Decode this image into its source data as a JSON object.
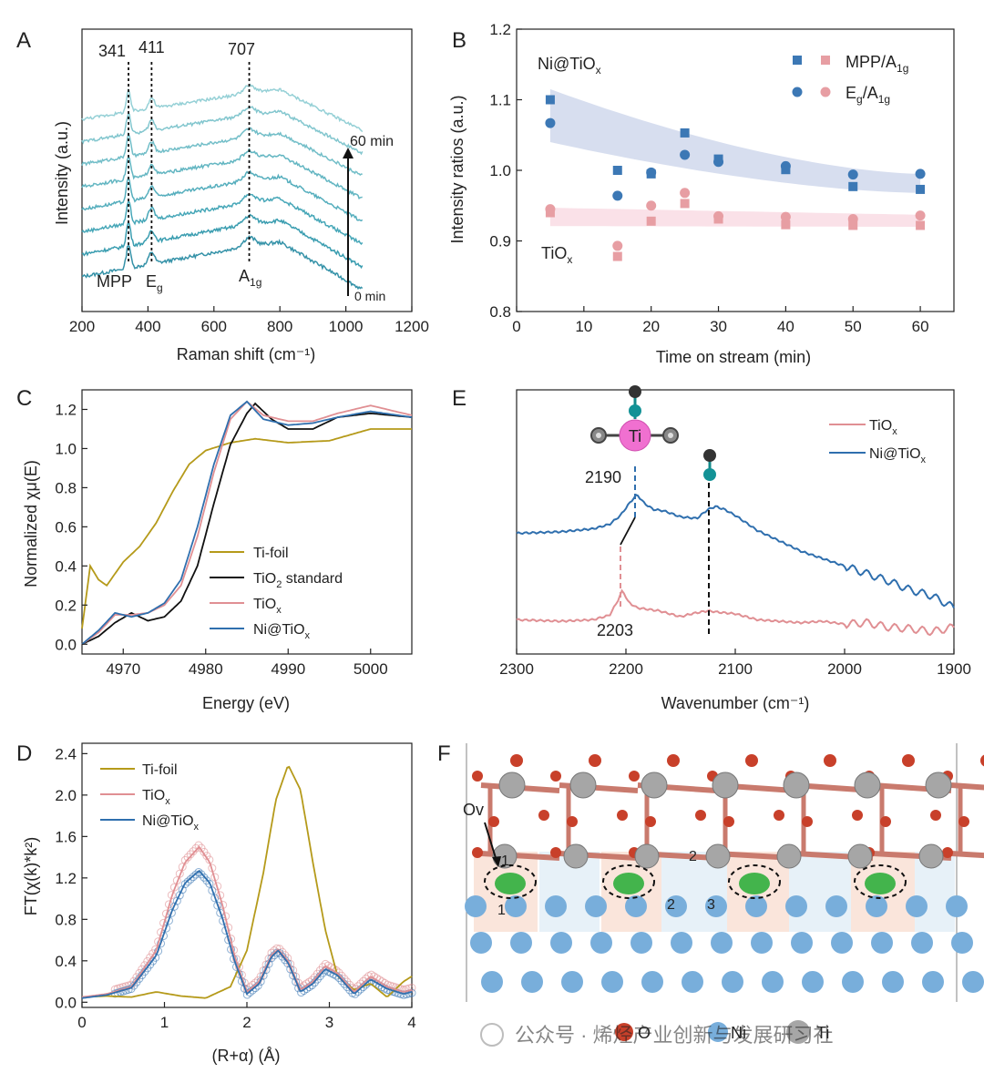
{
  "colors": {
    "ti_foil": "#b59a1a",
    "tio2_std": "#111111",
    "tiox": "#e08f93",
    "ni_tiox": "#2f6fae",
    "raman": "#3aa7b8",
    "blue_marker": "#3c78b5",
    "pink_marker": "#e79ea3",
    "o_atom": "#c8402a",
    "ni_atom": "#78aedb",
    "ti_atom": "#a6a6a6",
    "charge": "#2fae3c"
  },
  "chart_data": [
    {
      "panel": "A",
      "type": "line",
      "xlabel": "Raman shift (cm⁻¹)",
      "ylabel": "Intensity (a.u.)",
      "xlim": [
        200,
        1200
      ],
      "xticks": [
        "200",
        "400",
        "600",
        "800",
        "1000",
        "1200"
      ],
      "peak_labels": [
        "341",
        "411",
        "707"
      ],
      "peak_positions": [
        341,
        411,
        707
      ],
      "mode_labels": {
        "mpp": "MPP",
        "eg": "E",
        "eg_sub": "g",
        "a1g": "A",
        "a1g_sub": "1g"
      },
      "time_labels": {
        "top": "60 min",
        "bottom": "0 min"
      },
      "n_series": 8
    },
    {
      "panel": "B",
      "type": "scatter",
      "xlabel": "Time on stream (min)",
      "ylabel": "Intensity ratios (a.u.)",
      "xlim": [
        0,
        65
      ],
      "ylim": [
        0.8,
        1.2
      ],
      "xticks": [
        "0",
        "10",
        "20",
        "30",
        "40",
        "50",
        "60"
      ],
      "yticks": [
        "0.8",
        "0.9",
        "1.0",
        "1.1",
        "1.2"
      ],
      "annotations": {
        "ni_label": "Ni@TiO",
        "ni_sub": "x",
        "ti_label": "TiO",
        "ti_sub": "x"
      },
      "legend": {
        "mpp": "MPP/A",
        "mpp_sub": "1g",
        "eg": "E",
        "eg_sub": "g",
        "eg_tail": "/A",
        "eg_tail_sub": "1g"
      },
      "x": [
        5,
        15,
        20,
        25,
        30,
        40,
        50,
        60
      ],
      "series": [
        {
          "name": "Ni@TiOx MPP/A1g",
          "marker": "square",
          "color": "blue",
          "values": [
            1.1,
            1.0,
            0.995,
            1.053,
            1.016,
            1.001,
            0.977,
            0.973
          ]
        },
        {
          "name": "Ni@TiOx Eg/A1g",
          "marker": "circle",
          "color": "blue",
          "values": [
            1.067,
            0.964,
            0.997,
            1.022,
            1.012,
            1.006,
            0.994,
            0.995
          ]
        },
        {
          "name": "TiOx MPP/A1g",
          "marker": "square",
          "color": "pink",
          "values": [
            0.94,
            0.878,
            0.928,
            0.953,
            0.931,
            0.923,
            0.922,
            0.922
          ]
        },
        {
          "name": "TiOx Eg/A1g",
          "marker": "circle",
          "color": "pink",
          "values": [
            0.945,
            0.893,
            0.95,
            0.968,
            0.935,
            0.934,
            0.931,
            0.936
          ]
        }
      ],
      "bands": [
        {
          "name": "Ni@TiOx",
          "x": [
            5,
            60
          ],
          "upper": [
            1.115,
            0.995
          ],
          "lower": [
            1.04,
            0.968
          ]
        },
        {
          "name": "TiOx",
          "x": [
            5,
            60
          ],
          "upper": [
            0.947,
            0.937
          ],
          "lower": [
            0.921,
            0.92
          ]
        }
      ]
    },
    {
      "panel": "C",
      "type": "line",
      "xlabel": "Energy (eV)",
      "ylabel": "Normalized χμ(E)",
      "xlim": [
        4965,
        5005
      ],
      "ylim": [
        -0.05,
        1.3
      ],
      "xticks": [
        "4970",
        "4980",
        "4990",
        "5000"
      ],
      "yticks": [
        "0.0",
        "0.2",
        "0.4",
        "0.6",
        "0.8",
        "1.0",
        "1.2"
      ],
      "legend": [
        "Ti-foil",
        "TiO",
        "standard",
        "TiO",
        "Ni@TiO"
      ],
      "legend_sub": {
        "tio2": "2",
        "x": "x"
      },
      "series": [
        {
          "name": "Ti-foil",
          "x": [
            4965,
            4966,
            4967,
            4968,
            4969,
            4970,
            4972,
            4974,
            4976,
            4978,
            4980,
            4983,
            4986,
            4990,
            4995,
            5000,
            5005
          ],
          "values": [
            0.08,
            0.4,
            0.33,
            0.3,
            0.36,
            0.42,
            0.5,
            0.62,
            0.78,
            0.92,
            0.99,
            1.03,
            1.05,
            1.03,
            1.04,
            1.1,
            1.1
          ]
        },
        {
          "name": "TiO2 standard",
          "x": [
            4965,
            4967,
            4969,
            4971,
            4973,
            4975,
            4977,
            4979,
            4981,
            4983,
            4985,
            4986,
            4988,
            4990,
            4993,
            4996,
            5000,
            5005
          ],
          "values": [
            0.0,
            0.04,
            0.11,
            0.16,
            0.12,
            0.14,
            0.22,
            0.4,
            0.72,
            1.02,
            1.18,
            1.23,
            1.15,
            1.1,
            1.1,
            1.16,
            1.18,
            1.16
          ]
        },
        {
          "name": "TiOx",
          "x": [
            4965,
            4967,
            4969,
            4971,
            4973,
            4975,
            4977,
            4979,
            4981,
            4983,
            4985,
            4987,
            4990,
            4993,
            4996,
            5000,
            5005
          ],
          "values": [
            0.0,
            0.06,
            0.15,
            0.15,
            0.16,
            0.2,
            0.3,
            0.55,
            0.88,
            1.15,
            1.24,
            1.17,
            1.14,
            1.14,
            1.18,
            1.22,
            1.17
          ]
        },
        {
          "name": "Ni@TiOx",
          "x": [
            4965,
            4967,
            4969,
            4971,
            4973,
            4975,
            4977,
            4979,
            4981,
            4983,
            4985,
            4987,
            4990,
            4993,
            4996,
            5000,
            5005
          ],
          "values": [
            0.0,
            0.07,
            0.16,
            0.14,
            0.16,
            0.21,
            0.33,
            0.6,
            0.92,
            1.17,
            1.24,
            1.15,
            1.12,
            1.13,
            1.16,
            1.19,
            1.16
          ]
        }
      ]
    },
    {
      "panel": "E",
      "type": "line",
      "xlabel": "Wavenumber (cm⁻¹)",
      "xlim": [
        2300,
        1900
      ],
      "xticks": [
        "2300",
        "2200",
        "2100",
        "2000",
        "1900"
      ],
      "peak_labels": [
        "2190",
        "2203"
      ],
      "legend": [
        "TiO",
        "Ni@TiO"
      ],
      "legend_sub": "x",
      "molecule_label": "Ti",
      "series": [
        {
          "name": "Ni@TiOx",
          "x": [
            2300,
            2260,
            2230,
            2215,
            2205,
            2197,
            2190,
            2183,
            2175,
            2165,
            2150,
            2135,
            2125,
            2118,
            2110,
            2100,
            2080,
            2060,
            2040,
            2020,
            2000,
            1980,
            1960,
            1940,
            1920,
            1900
          ],
          "values": [
            0.6,
            0.61,
            0.63,
            0.66,
            0.72,
            0.8,
            0.86,
            0.8,
            0.76,
            0.75,
            0.71,
            0.7,
            0.76,
            0.78,
            0.76,
            0.72,
            0.62,
            0.55,
            0.48,
            0.43,
            0.38,
            0.33,
            0.28,
            0.22,
            0.18,
            0.1
          ]
        },
        {
          "name": "TiOx",
          "x": [
            2300,
            2260,
            2230,
            2215,
            2208,
            2203,
            2198,
            2190,
            2180,
            2170,
            2160,
            2150,
            2140,
            2125,
            2115,
            2100,
            2080,
            2060,
            2040,
            2020,
            2000,
            1980,
            1960,
            1940,
            1920,
            1900
          ],
          "values": [
            0.02,
            0.01,
            0.02,
            0.05,
            0.14,
            0.22,
            0.14,
            0.1,
            0.09,
            0.08,
            0.06,
            0.04,
            0.06,
            0.08,
            0.07,
            0.06,
            0.02,
            0.01,
            0.0,
            0.01,
            -0.01,
            0.0,
            -0.03,
            -0.04,
            -0.06,
            -0.03
          ]
        }
      ]
    },
    {
      "panel": "D",
      "type": "line",
      "xlabel": "(R+α) (Å)",
      "ylabel": "FT(χ(k)*k²)",
      "xlim": [
        0,
        4
      ],
      "ylim": [
        -0.05,
        2.5
      ],
      "xticks": [
        "0",
        "1",
        "2",
        "3",
        "4"
      ],
      "yticks": [
        "0.0",
        "0.4",
        "0.8",
        "1.2",
        "1.6",
        "2.0",
        "2.4"
      ],
      "legend": [
        "Ti-foil",
        "TiO",
        "Ni@TiO"
      ],
      "legend_sub": "x",
      "series": [
        {
          "name": "Ti-foil",
          "x": [
            0,
            0.3,
            0.6,
            0.9,
            1.2,
            1.5,
            1.8,
            2.0,
            2.2,
            2.35,
            2.5,
            2.65,
            2.8,
            2.95,
            3.1,
            3.3,
            3.5,
            3.7,
            3.9,
            4.0
          ],
          "values": [
            0.05,
            0.06,
            0.05,
            0.1,
            0.06,
            0.04,
            0.15,
            0.5,
            1.25,
            1.95,
            2.29,
            2.05,
            1.35,
            0.7,
            0.25,
            0.12,
            0.18,
            0.05,
            0.2,
            0.25
          ]
        },
        {
          "name": "TiOx",
          "x": [
            0,
            0.3,
            0.6,
            0.9,
            1.1,
            1.25,
            1.42,
            1.55,
            1.7,
            1.85,
            2.0,
            2.15,
            2.3,
            2.38,
            2.5,
            2.65,
            2.8,
            2.95,
            3.1,
            3.3,
            3.5,
            3.7,
            3.9,
            4.0
          ],
          "values": [
            0.05,
            0.08,
            0.15,
            0.5,
            1.05,
            1.35,
            1.5,
            1.35,
            0.95,
            0.45,
            0.1,
            0.2,
            0.46,
            0.51,
            0.4,
            0.12,
            0.2,
            0.35,
            0.28,
            0.1,
            0.25,
            0.15,
            0.1,
            0.12
          ]
        },
        {
          "name": "Ni@TiOx",
          "x": [
            0,
            0.3,
            0.6,
            0.9,
            1.1,
            1.25,
            1.42,
            1.55,
            1.7,
            1.85,
            2.0,
            2.15,
            2.3,
            2.38,
            2.5,
            2.65,
            2.8,
            2.95,
            3.1,
            3.3,
            3.5,
            3.7,
            3.9,
            4.0
          ],
          "values": [
            0.04,
            0.07,
            0.14,
            0.45,
            0.9,
            1.15,
            1.27,
            1.15,
            0.82,
            0.4,
            0.08,
            0.18,
            0.44,
            0.5,
            0.38,
            0.1,
            0.18,
            0.32,
            0.26,
            0.08,
            0.22,
            0.13,
            0.08,
            0.1
          ]
        }
      ]
    }
  ],
  "panel_f": {
    "ov_label": "Ov",
    "site_labels": [
      "1",
      "1",
      "2",
      "2",
      "3"
    ],
    "legend": {
      "o": "O",
      "ni": "Ni",
      "ti": "Ti"
    }
  },
  "panel_letters": [
    "A",
    "B",
    "C",
    "D",
    "E",
    "F"
  ],
  "watermark": "公众号 · 烯烃产业创新与发展研习社"
}
